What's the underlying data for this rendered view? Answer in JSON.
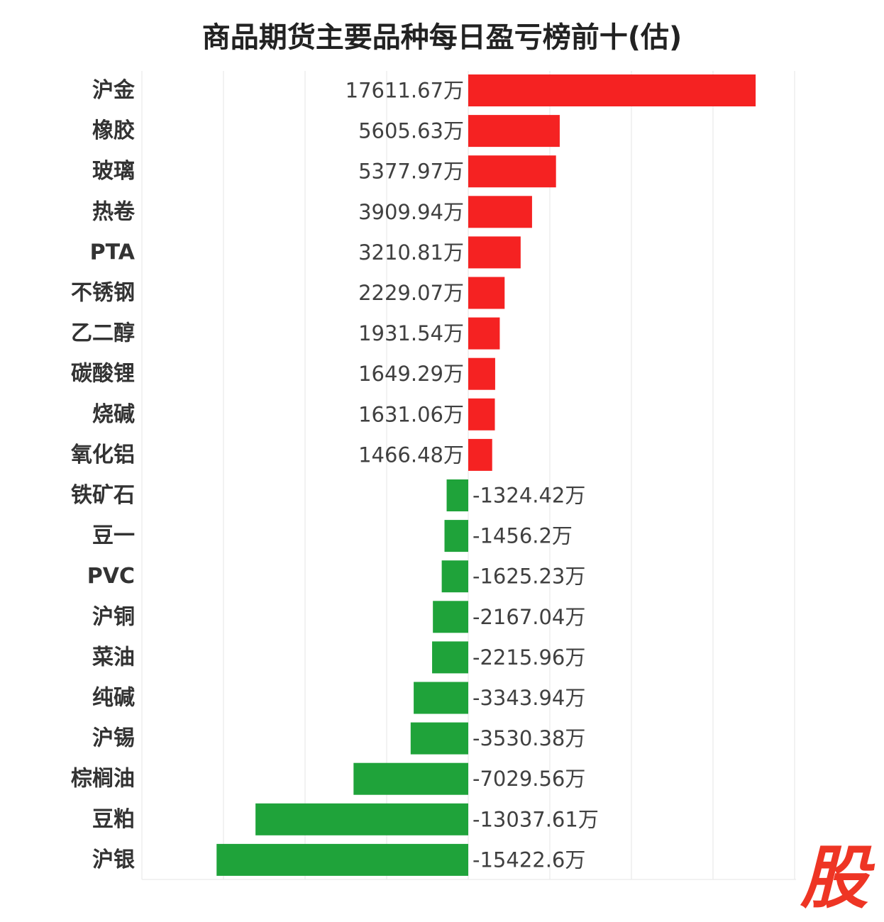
{
  "title": "商品期货主要品种每日盈亏榜前十(估)",
  "watermark": "股",
  "unit_suffix": "万",
  "colors": {
    "positive": "#f52222",
    "negative": "#1fa33a",
    "grid": "#e6e6e6",
    "label": "#333333",
    "value": "#404040"
  },
  "chart_data": {
    "type": "bar",
    "orientation": "horizontal",
    "title": "商品期货主要品种每日盈亏榜前十(估)",
    "xlabel": "",
    "ylabel": "",
    "grid": true,
    "categories": [
      "沪金",
      "橡胶",
      "玻璃",
      "热卷",
      "PTA",
      "不锈钢",
      "乙二醇",
      "碳酸锂",
      "烧碱",
      "氧化铝",
      "铁矿石",
      "豆一",
      "PVC",
      "沪铜",
      "菜油",
      "纯碱",
      "沪锡",
      "棕榈油",
      "豆粕",
      "沪银"
    ],
    "values": [
      17611.67,
      5605.63,
      5377.97,
      3909.94,
      3210.81,
      2229.07,
      1931.54,
      1649.29,
      1631.06,
      1466.48,
      -1324.42,
      -1456.2,
      -1625.23,
      -2167.04,
      -2215.96,
      -3343.94,
      -3530.38,
      -7029.56,
      -13037.61,
      -15422.6
    ],
    "value_labels": [
      "17611.67万",
      "5605.63万",
      "5377.97万",
      "3909.94万",
      "3210.81万",
      "2229.07万",
      "1931.54万",
      "1649.29万",
      "1631.06万",
      "1466.48万",
      "-1324.42万",
      "-1456.2万",
      "-1625.23万",
      "-2167.04万",
      "-2215.96万",
      "-3343.94万",
      "-3530.38万",
      "-7029.56万",
      "-13037.61万",
      "-15422.6万"
    ],
    "xlim": [
      -20000,
      20000
    ]
  }
}
